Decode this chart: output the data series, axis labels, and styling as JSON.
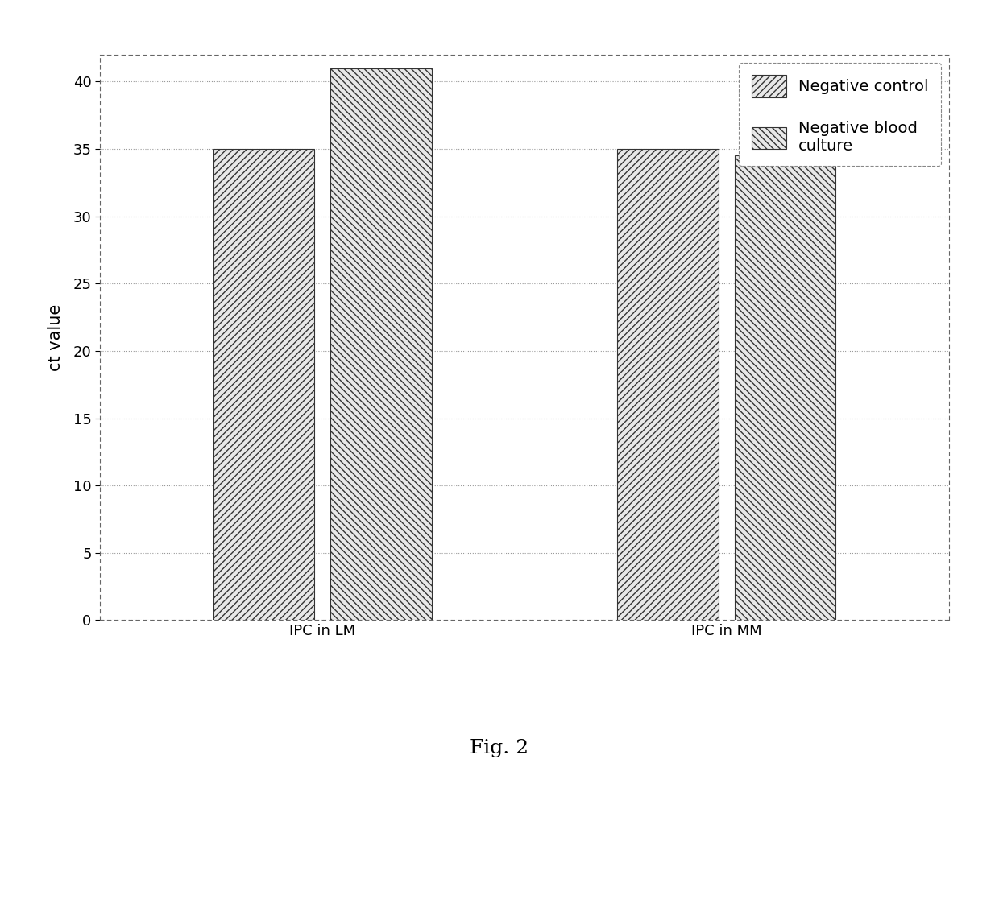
{
  "categories": [
    "IPC in LM",
    "IPC in MM"
  ],
  "series": [
    {
      "label": "Negative control",
      "values": [
        35,
        35
      ],
      "hatch": "////"
    },
    {
      "label": "Negative blood\nculture",
      "values": [
        41,
        34.5
      ],
      "hatch": "\\\\\\\\"
    }
  ],
  "ylabel": "ct value",
  "ylim": [
    0,
    42
  ],
  "yticks": [
    0,
    5,
    10,
    15,
    20,
    25,
    30,
    35,
    40
  ],
  "bar_width": 0.25,
  "background_color": "#ffffff",
  "chart_background": "#ffffff",
  "bar_edge_color": "#333333",
  "bar_face_color": "#e8e8e8",
  "grid_color": "#999999",
  "fig_caption": "Fig. 2",
  "title_fontsize": 18,
  "axis_fontsize": 15,
  "tick_fontsize": 13,
  "legend_fontsize": 14
}
